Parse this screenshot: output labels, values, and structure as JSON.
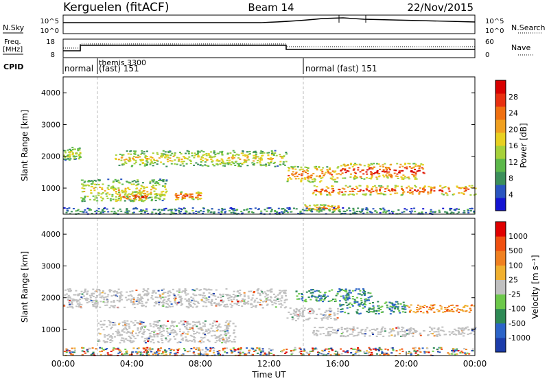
{
  "header": {
    "station": "Kerguelen (fitACF)",
    "beam": "Beam 14",
    "date": "22/Nov/2015"
  },
  "noise_panel": {
    "left_label": "N.Sky",
    "left_ticks": [
      "10^5",
      "10^0"
    ],
    "right_ticks": [
      "10^5",
      "10^0"
    ],
    "right_label": "N.Search"
  },
  "freq_panel": {
    "left_label_1": "Freq.",
    "left_label_2": "[MHz]",
    "left_ticks": [
      "18",
      "8"
    ],
    "right_ticks": [
      "60",
      "0"
    ],
    "right_label": "Nave"
  },
  "cpid": {
    "label": "CPID",
    "segments": [
      {
        "text": "normal",
        "start_hour": 0
      },
      {
        "text": "themis 3300",
        "start_hour": 2
      },
      {
        "text": "(fast) 151",
        "start_hour": 2
      },
      {
        "text": "normal (fast) 151",
        "start_hour": 14
      }
    ]
  },
  "chart_data": [
    {
      "type": "heatmap",
      "title": "",
      "xlabel": "",
      "ylabel": "Slant Range [km]",
      "y_ticks": [
        "1000",
        "2000",
        "3000",
        "4000"
      ],
      "y_range_km": [
        180,
        4500
      ],
      "x_range_hours": [
        0,
        24
      ],
      "colorbar": {
        "label": "Power [dB]",
        "ticks": [
          "4",
          "8",
          "12",
          "16",
          "20",
          "24",
          "28"
        ],
        "colors": [
          "#1414d2",
          "#2a55c0",
          "#3b8f5a",
          "#5cb84a",
          "#a6d13a",
          "#e8d020",
          "#f0a020",
          "#f07010",
          "#e83010",
          "#d80000"
        ]
      },
      "bands": [
        {
          "t": [
            0.0,
            1.0
          ],
          "r": [
            1900,
            2300
          ],
          "lvl": 0.55
        },
        {
          "t": [
            1.0,
            6.0
          ],
          "r": [
            600,
            1300
          ],
          "lvl": 0.6
        },
        {
          "t": [
            3.0,
            5.0
          ],
          "r": [
            600,
            900
          ],
          "lvl": 0.85
        },
        {
          "t": [
            6.5,
            8.0
          ],
          "r": [
            650,
            900
          ],
          "lvl": 0.9
        },
        {
          "t": [
            3.0,
            13.0
          ],
          "r": [
            1700,
            2200
          ],
          "lvl": 0.6
        },
        {
          "t": [
            13.0,
            16.0
          ],
          "r": [
            1200,
            1700
          ],
          "lvl": 0.8
        },
        {
          "t": [
            16.0,
            21.0
          ],
          "r": [
            1300,
            1800
          ],
          "lvl": 0.95
        },
        {
          "t": [
            14.5,
            24.0
          ],
          "r": [
            800,
            1100
          ],
          "lvl": 0.9
        },
        {
          "t": [
            14.0,
            16.0
          ],
          "r": [
            300,
            500
          ],
          "lvl": 0.8
        },
        {
          "t": [
            0.0,
            24.0
          ],
          "r": [
            200,
            400
          ],
          "lvl": 0.3
        }
      ]
    },
    {
      "type": "heatmap",
      "title": "",
      "xlabel": "Time UT",
      "ylabel": "Slant Range [km]",
      "y_ticks": [
        "1000",
        "2000",
        "3000",
        "4000"
      ],
      "y_range_km": [
        180,
        4500
      ],
      "x_range_hours": [
        0,
        24
      ],
      "x_ticks": [
        "00:00",
        "04:00",
        "08:00",
        "12:00",
        "16:00",
        "20:00",
        "00:00"
      ],
      "colorbar": {
        "label": "Velocity [m s⁻¹]",
        "ticks": [
          "1000",
          "500",
          "100",
          "25",
          "-25",
          "-100",
          "-500",
          "-1000"
        ],
        "colors": [
          "#1c3caa",
          "#2c64c8",
          "#2e8a55",
          "#6cc84a",
          "#c0c0c0",
          "#f0b030",
          "#f08020",
          "#f05010",
          "#e00000"
        ]
      },
      "bands": [
        {
          "t": [
            0.0,
            13.0
          ],
          "r": [
            1700,
            2300
          ],
          "cls": "slow"
        },
        {
          "t": [
            2.0,
            10.0
          ],
          "r": [
            600,
            1300
          ],
          "cls": "slow"
        },
        {
          "t": [
            13.0,
            16.0
          ],
          "r": [
            1300,
            1700
          ],
          "cls": "slow"
        },
        {
          "t": [
            13.5,
            18.0
          ],
          "r": [
            1900,
            2300
          ],
          "cls": "toward"
        },
        {
          "t": [
            16.0,
            20.0
          ],
          "r": [
            1500,
            1900
          ],
          "cls": "toward"
        },
        {
          "t": [
            20.0,
            24.0
          ],
          "r": [
            1550,
            1800
          ],
          "cls": "away"
        },
        {
          "t": [
            14.5,
            24.0
          ],
          "r": [
            800,
            1100
          ],
          "cls": "slow"
        },
        {
          "t": [
            0.0,
            24.0
          ],
          "r": [
            200,
            450
          ],
          "cls": "mixed"
        }
      ]
    }
  ]
}
